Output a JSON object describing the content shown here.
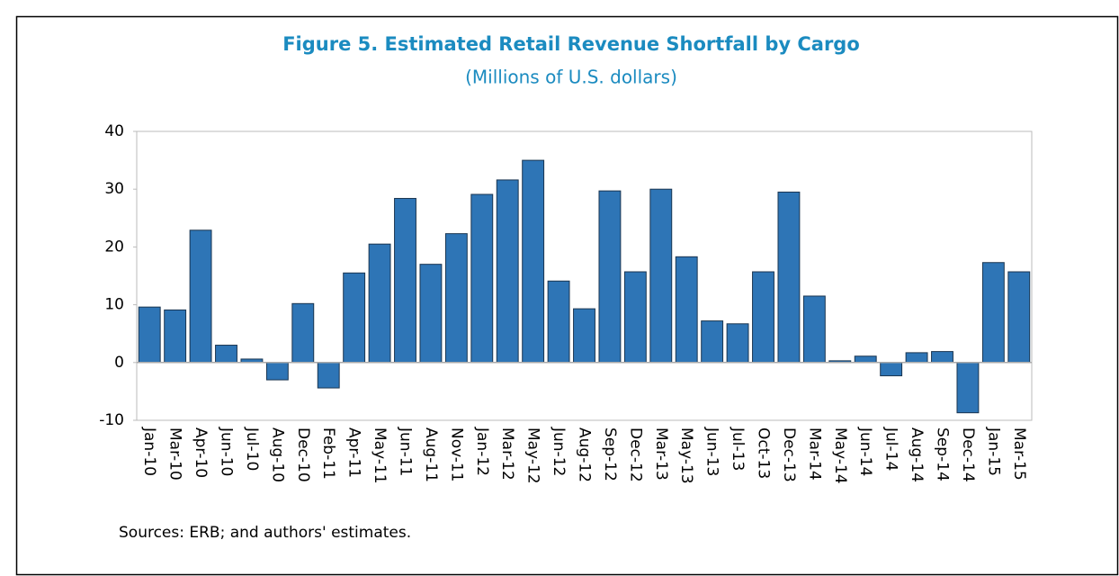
{
  "chart_data": {
    "type": "bar",
    "title": "Figure 5. Estimated Retail Revenue Shortfall by Cargo",
    "subtitle": "(Millions of U.S. dollars)",
    "source": "Sources: ERB; and authors' estimates.",
    "categories": [
      "Jan-10",
      "Mar-10",
      "Apr-10",
      "Jun-10",
      "Jul-10",
      "Aug-10",
      "Dec-10",
      "Feb-11",
      "Apr-11",
      "May-11",
      "Jun-11",
      "Aug-11",
      "Nov-11",
      "Jan-12",
      "Mar-12",
      "May-12",
      "Jun-12",
      "Aug-12",
      "Sep-12",
      "Dec-12",
      "Mar-13",
      "May-13",
      "Jun-13",
      "Jul-13",
      "Oct-13",
      "Dec-13",
      "Mar-14",
      "May-14",
      "Jun-14",
      "Jul-14",
      "Aug-14",
      "Sep-14",
      "Dec-14",
      "Jan-15",
      "Mar-15"
    ],
    "values": [
      9.6,
      9.1,
      22.9,
      3.0,
      0.6,
      -3.0,
      10.2,
      -4.4,
      15.5,
      20.5,
      28.4,
      17.0,
      22.3,
      29.1,
      31.6,
      35.0,
      14.1,
      9.3,
      29.7,
      15.7,
      30.0,
      18.3,
      7.2,
      6.7,
      15.7,
      29.5,
      11.5,
      0.3,
      1.1,
      -2.3,
      1.7,
      1.9,
      -8.7,
      17.3,
      15.7
    ],
    "color": "#2e75b6",
    "ylim": [
      -10,
      40
    ],
    "yticks": [
      -10,
      0,
      10,
      20,
      30,
      40
    ],
    "grid": false
  }
}
